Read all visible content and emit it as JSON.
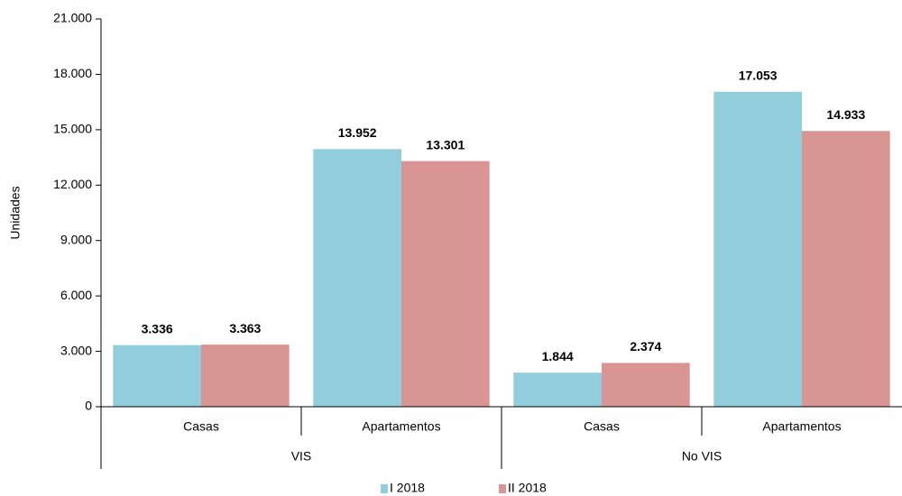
{
  "chart_data": {
    "type": "bar",
    "y_label": "Unidades",
    "categories": [
      "Casas",
      "Apartamentos",
      "Casas",
      "Apartamentos"
    ],
    "group_labels": [
      "VIS",
      "No VIS"
    ],
    "series": [
      {
        "name": "I 2018",
        "color": "#92cddc",
        "values": [
          3336,
          13952,
          1844,
          17053
        ],
        "value_labels": [
          "3.336",
          "13.952",
          "1.844",
          "17.053"
        ]
      },
      {
        "name": "II 2018",
        "color": "#d99594",
        "values": [
          3363,
          13301,
          2374,
          14933
        ],
        "value_labels": [
          "3.363",
          "13.301",
          "2.374",
          "14.933"
        ]
      }
    ],
    "ylim": [
      0,
      21000
    ],
    "yticks": [
      0,
      {
        "value": 3000,
        "label": "3.000"
      },
      {
        "value": 6000,
        "label": "6.000"
      },
      {
        "value": 9000,
        "label": "9.000"
      },
      {
        "value": 12000,
        "label": "12.000"
      },
      {
        "value": 15000,
        "label": "15.000"
      },
      {
        "value": 18000,
        "label": "18.000"
      },
      {
        "value": 21000,
        "label": "21.000"
      }
    ],
    "legend": "bottom"
  }
}
